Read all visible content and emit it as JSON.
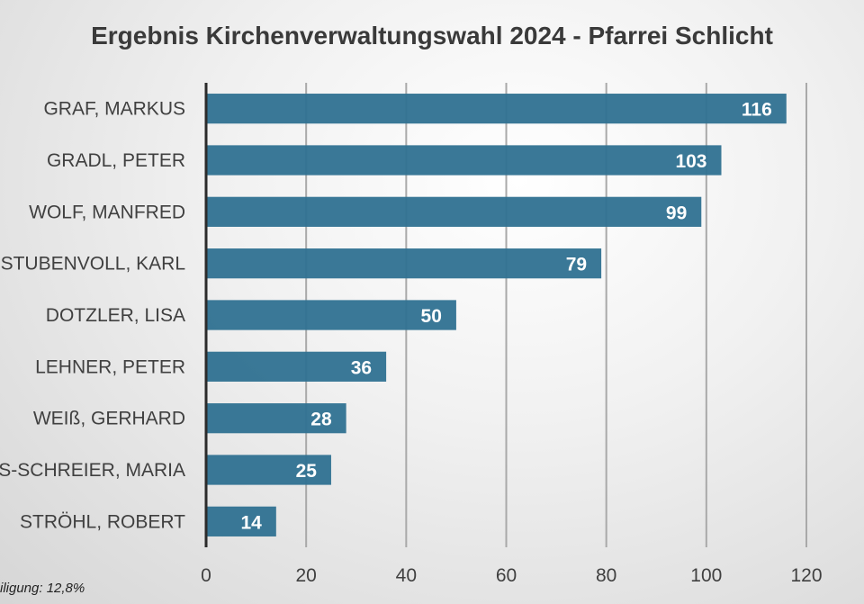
{
  "chart_data": {
    "type": "bar",
    "orientation": "horizontal",
    "title": "Ergebnis Kirchenverwaltungswahl 2024 - Pfarrei Schlicht",
    "categories": [
      "GRAF, MARKUS",
      "GRADL, PETER",
      "WOLF, MANFRED",
      "STUBENVOLL, KARL",
      "DOTZLER, LISA",
      "LEHNER, PETER",
      "WEIß, GERHARD",
      "S-SCHREIER, MARIA",
      "STRÖHL, ROBERT"
    ],
    "values": [
      116,
      103,
      99,
      79,
      50,
      36,
      28,
      25,
      14
    ],
    "xlim": [
      0,
      120
    ],
    "xticks": [
      0,
      20,
      40,
      60,
      80,
      100,
      120
    ],
    "xlabel": "",
    "ylabel": "",
    "grid": true,
    "legend": "none",
    "bar_color": "#2f7191",
    "data_labels": true
  },
  "footnote": "iligung: 12,8%"
}
